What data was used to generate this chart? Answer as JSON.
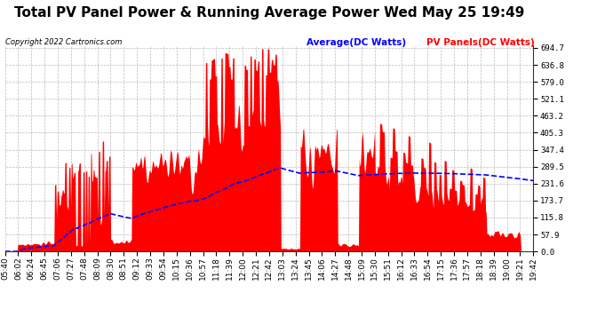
{
  "title": "Total PV Panel Power & Running Average Power Wed May 25 19:49",
  "copyright": "Copyright 2022 Cartronics.com",
  "legend_avg": "Average(DC Watts)",
  "legend_pv": "PV Panels(DC Watts)",
  "y_min": 0.0,
  "y_max": 694.7,
  "y_ticks": [
    0.0,
    57.9,
    115.8,
    173.7,
    231.6,
    289.5,
    347.4,
    405.3,
    463.2,
    521.1,
    579.0,
    636.8,
    694.7
  ],
  "bg_color": "#ffffff",
  "plot_bg_color": "#ffffff",
  "grid_color": "#aaaaaa",
  "pv_fill_color": "#ff0000",
  "avg_line_color": "#0000ff",
  "title_fontsize": 11,
  "tick_fontsize": 6.5,
  "x_labels": [
    "05:40",
    "06:02",
    "06:24",
    "06:45",
    "07:06",
    "07:27",
    "07:48",
    "08:09",
    "08:30",
    "08:51",
    "09:12",
    "09:33",
    "09:54",
    "10:15",
    "10:36",
    "10:57",
    "11:18",
    "11:39",
    "12:00",
    "12:21",
    "12:42",
    "13:03",
    "13:24",
    "13:45",
    "14:06",
    "14:27",
    "14:48",
    "15:09",
    "15:30",
    "15:51",
    "16:12",
    "16:33",
    "16:54",
    "17:15",
    "17:36",
    "17:57",
    "18:18",
    "18:39",
    "19:00",
    "19:21",
    "19:42"
  ]
}
